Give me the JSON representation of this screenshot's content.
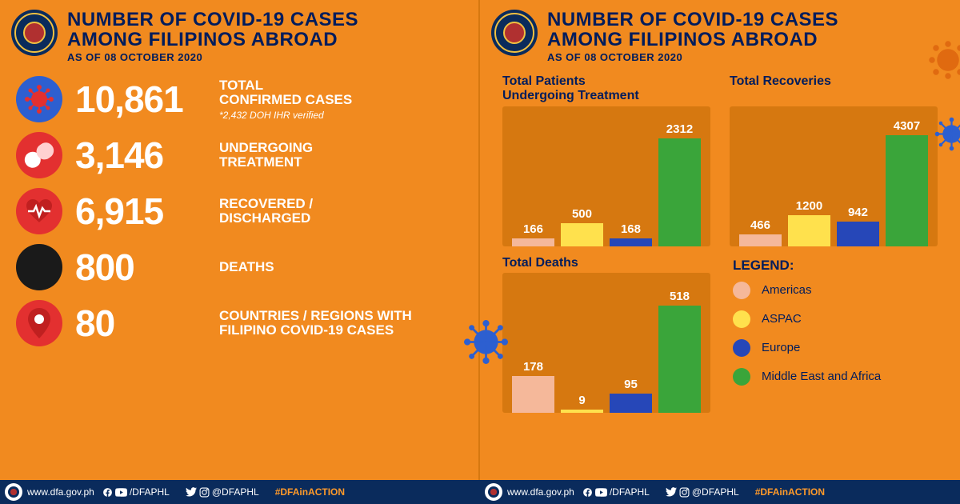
{
  "header": {
    "title_line1": "NUMBER OF COVID-19 CASES",
    "title_line2": "AMONG FILIPINOS ABROAD",
    "date": "AS OF 08 OCTOBER 2020"
  },
  "stats": {
    "confirmed": {
      "value": "10,861",
      "label_l1": "TOTAL",
      "label_l2": "CONFIRMED CASES",
      "note": "*2,432 DOH IHR verified"
    },
    "treatment": {
      "value": "3,146",
      "label_l1": "UNDERGOING",
      "label_l2": "TREATMENT"
    },
    "recovered": {
      "value": "6,915",
      "label_l1": "RECOVERED /",
      "label_l2": "DISCHARGED"
    },
    "deaths": {
      "value": "800",
      "label_l1": "DEATHS"
    },
    "countries": {
      "value": "80",
      "label_l1": "COUNTRIES / REGIONS WITH",
      "label_l2": "FILIPINO COVID-19 CASES"
    }
  },
  "colors": {
    "bg": "#f18a1f",
    "chart_bg": "#d67810",
    "navy": "#001c5c",
    "americas": "#f5b89a",
    "aspac": "#ffe14d",
    "europe": "#2647b8",
    "mea": "#3aa53a"
  },
  "charts": {
    "treatment": {
      "title_l1": "Total Patients",
      "title_l2": "Undergoing Treatment",
      "max": 2500,
      "data": [
        {
          "label": "166",
          "value": 166,
          "color": "#f5b89a"
        },
        {
          "label": "500",
          "value": 500,
          "color": "#ffe14d"
        },
        {
          "label": "168",
          "value": 168,
          "color": "#2647b8"
        },
        {
          "label": "2312",
          "value": 2312,
          "color": "#3aa53a"
        }
      ]
    },
    "recoveries": {
      "title_l1": "Total Recoveries",
      "max": 4500,
      "data": [
        {
          "label": "466",
          "value": 466,
          "color": "#f5b89a"
        },
        {
          "label": "1200",
          "value": 1200,
          "color": "#ffe14d"
        },
        {
          "label": "942",
          "value": 942,
          "color": "#2647b8"
        },
        {
          "label": "4307",
          "value": 4307,
          "color": "#3aa53a"
        }
      ]
    },
    "deaths": {
      "title_l1": "Total Deaths",
      "max": 560,
      "data": [
        {
          "label": "178",
          "value": 178,
          "color": "#f5b89a"
        },
        {
          "label": "9",
          "value": 9,
          "color": "#ffe14d"
        },
        {
          "label": "95",
          "value": 95,
          "color": "#2647b8"
        },
        {
          "label": "518",
          "value": 518,
          "color": "#3aa53a"
        }
      ]
    }
  },
  "legend": {
    "title": "LEGEND:",
    "items": [
      {
        "label": "Americas",
        "color": "#f5b89a"
      },
      {
        "label": "ASPAC",
        "color": "#ffe14d"
      },
      {
        "label": "Europe",
        "color": "#2647b8"
      },
      {
        "label": "Middle East and Africa",
        "color": "#3aa53a"
      }
    ]
  },
  "footer": {
    "url": "www.dfa.gov.ph",
    "handle1": "/DFAPHL",
    "handle2": "@DFAPHL",
    "hashtag": "#DFAinACTION"
  }
}
